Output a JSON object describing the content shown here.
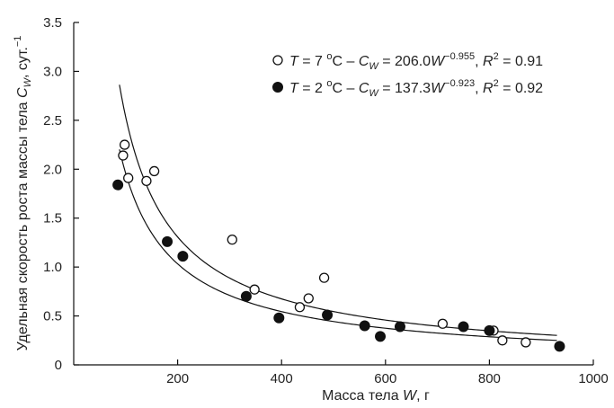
{
  "chart_data": {
    "type": "scatter",
    "xlabel": "Масса тела W, г",
    "xlabel_main": "Масса тела ",
    "xlabel_var": "W",
    "xlabel_unit": ", г",
    "ylabel_main": "Удельная скорость роста  массы тела ",
    "ylabel_var": "C",
    "ylabel_sub": "W",
    "ylabel_unit": ", сут.",
    "ylabel_sup": "−1",
    "xlim": [
      0,
      1000
    ],
    "ylim": [
      0,
      3.5
    ],
    "x_ticks": [
      200,
      400,
      600,
      800,
      1000
    ],
    "x_tick_labels": [
      "200",
      "400",
      "600",
      "800",
      "1000"
    ],
    "y_ticks": [
      0,
      0.5,
      1.0,
      1.5,
      2.0,
      2.5,
      3.0,
      3.5
    ],
    "y_tick_labels": [
      "0",
      "0.5",
      "1.0",
      "1.5",
      "2.0",
      "2.5",
      "3.0",
      "3.5"
    ],
    "legend_position": "top-right",
    "series": [
      {
        "name": "T = 7 °C – CW = 206.0W^−0.955, R2 = 0.91",
        "marker": "open-circle",
        "legend": {
          "var_T": "T",
          "text1": " = 7 ",
          "deg": "o",
          "text2": "C – ",
          "var_C": "C",
          "sub": "W",
          "text3": " = 206.0",
          "var_W": "W",
          "exp": "−0.955",
          "text4": ", ",
          "var_R": "R",
          "r_sup": "2",
          "text5": " = 0.91"
        },
        "fit": {
          "a": 206.0,
          "b": -0.955,
          "x_range": [
            88,
            930
          ]
        },
        "points": [
          [
            95,
            2.14
          ],
          [
            98,
            2.25
          ],
          [
            105,
            1.91
          ],
          [
            140,
            1.88
          ],
          [
            155,
            1.98
          ],
          [
            305,
            1.28
          ],
          [
            348,
            0.77
          ],
          [
            435,
            0.59
          ],
          [
            452,
            0.68
          ],
          [
            482,
            0.89
          ],
          [
            710,
            0.42
          ],
          [
            808,
            0.35
          ],
          [
            825,
            0.25
          ],
          [
            870,
            0.23
          ]
        ]
      },
      {
        "name": "T = 2 °C – CW = 137.3W^−0.923, R2 = 0.92",
        "marker": "filled-circle",
        "legend": {
          "var_T": "T",
          "text1": " = 2 ",
          "deg": "o",
          "text2": "C – ",
          "var_C": "C",
          "sub": "W",
          "text3": " = 137.3",
          "var_W": "W",
          "exp": "−0.923",
          "text4": ", ",
          "var_R": "R",
          "r_sup": "2",
          "text5": " = 0.92"
        },
        "fit": {
          "a": 137.3,
          "b": -0.923,
          "x_range": [
            88,
            930
          ]
        },
        "points": [
          [
            85,
            1.84
          ],
          [
            180,
            1.26
          ],
          [
            210,
            1.11
          ],
          [
            332,
            0.7
          ],
          [
            395,
            0.48
          ],
          [
            488,
            0.51
          ],
          [
            560,
            0.4
          ],
          [
            590,
            0.29
          ],
          [
            628,
            0.39
          ],
          [
            750,
            0.39
          ],
          [
            800,
            0.35
          ],
          [
            935,
            0.19
          ]
        ]
      }
    ]
  }
}
